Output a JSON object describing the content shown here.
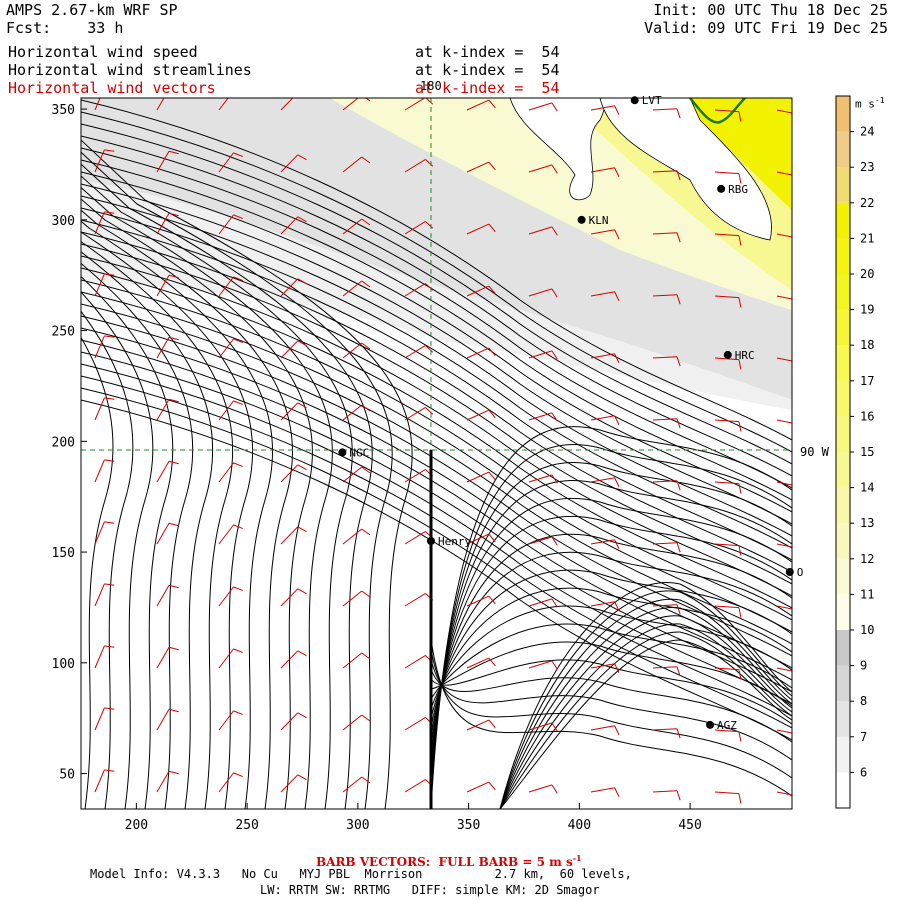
{
  "header": {
    "model": "AMPS 2.67-km WRF SP",
    "forecast": "Fcst:    33 h",
    "init": "Init: 00 UTC Thu 18 Dec 25",
    "valid": "Valid: 09 UTC Fri 19 Dec 25"
  },
  "fields": [
    {
      "name": "Horizontal wind speed",
      "level": "at k-index =  54",
      "color": "#000000"
    },
    {
      "name": "Horizontal wind streamlines",
      "level": "at k-index =  54",
      "color": "#000000"
    },
    {
      "name": "Horizontal wind vectors",
      "level": "at k-index =  54",
      "color": "#d40000"
    }
  ],
  "axes": {
    "x_ticks": [
      200,
      250,
      300,
      350,
      400,
      450
    ],
    "y_ticks": [
      50,
      100,
      150,
      200,
      250,
      300,
      350
    ],
    "x_range": [
      175,
      496
    ],
    "y_range": [
      34,
      355
    ]
  },
  "grid_labels": {
    "top": "180",
    "right": "90 W"
  },
  "stations": [
    {
      "name": "LVT",
      "x": 425,
      "y": 354
    },
    {
      "name": "RBG",
      "x": 464,
      "y": 314
    },
    {
      "name": "KLN",
      "x": 401,
      "y": 300
    },
    {
      "name": "HRC",
      "x": 467,
      "y": 239
    },
    {
      "name": "NGC",
      "x": 293,
      "y": 195
    },
    {
      "name": "Henry",
      "x": 333,
      "y": 155
    },
    {
      "name": "O",
      "x": 495,
      "y": 141
    },
    {
      "name": "AGZ",
      "x": 459,
      "y": 72
    }
  ],
  "colorbar": {
    "unit": "m s",
    "unit_exp": "-1",
    "levels": [
      6,
      7,
      8,
      9,
      10,
      11,
      12,
      13,
      14,
      15,
      16,
      17,
      18,
      19,
      20,
      21,
      22,
      23,
      24
    ],
    "colors": [
      "#ffffff",
      "#f2f2f2",
      "#e4e4e4",
      "#d6d6d6",
      "#c8c8c8",
      "#fcfce8",
      "#fafad2",
      "#f8f8bd",
      "#f8f8a8",
      "#f8f893",
      "#f8f87e",
      "#f8f86a",
      "#f8f850",
      "#f6f637",
      "#f4f41e",
      "#f4f410",
      "#f2f200",
      "#f0dc70",
      "#f0cc88",
      "#f0c070"
    ]
  },
  "footer": {
    "barb_label": "BARB VECTORS:  FULL BARB = 5 m s",
    "barb_exp": "-1",
    "model_info": "Model Info: V4.3.3   No Cu   MYJ PBL  Morrison          2.7 km,  60 levels,",
    "physics": "LW: RRTM SW: RRTMG   DIFF: simple KM: 2D Smagor"
  }
}
